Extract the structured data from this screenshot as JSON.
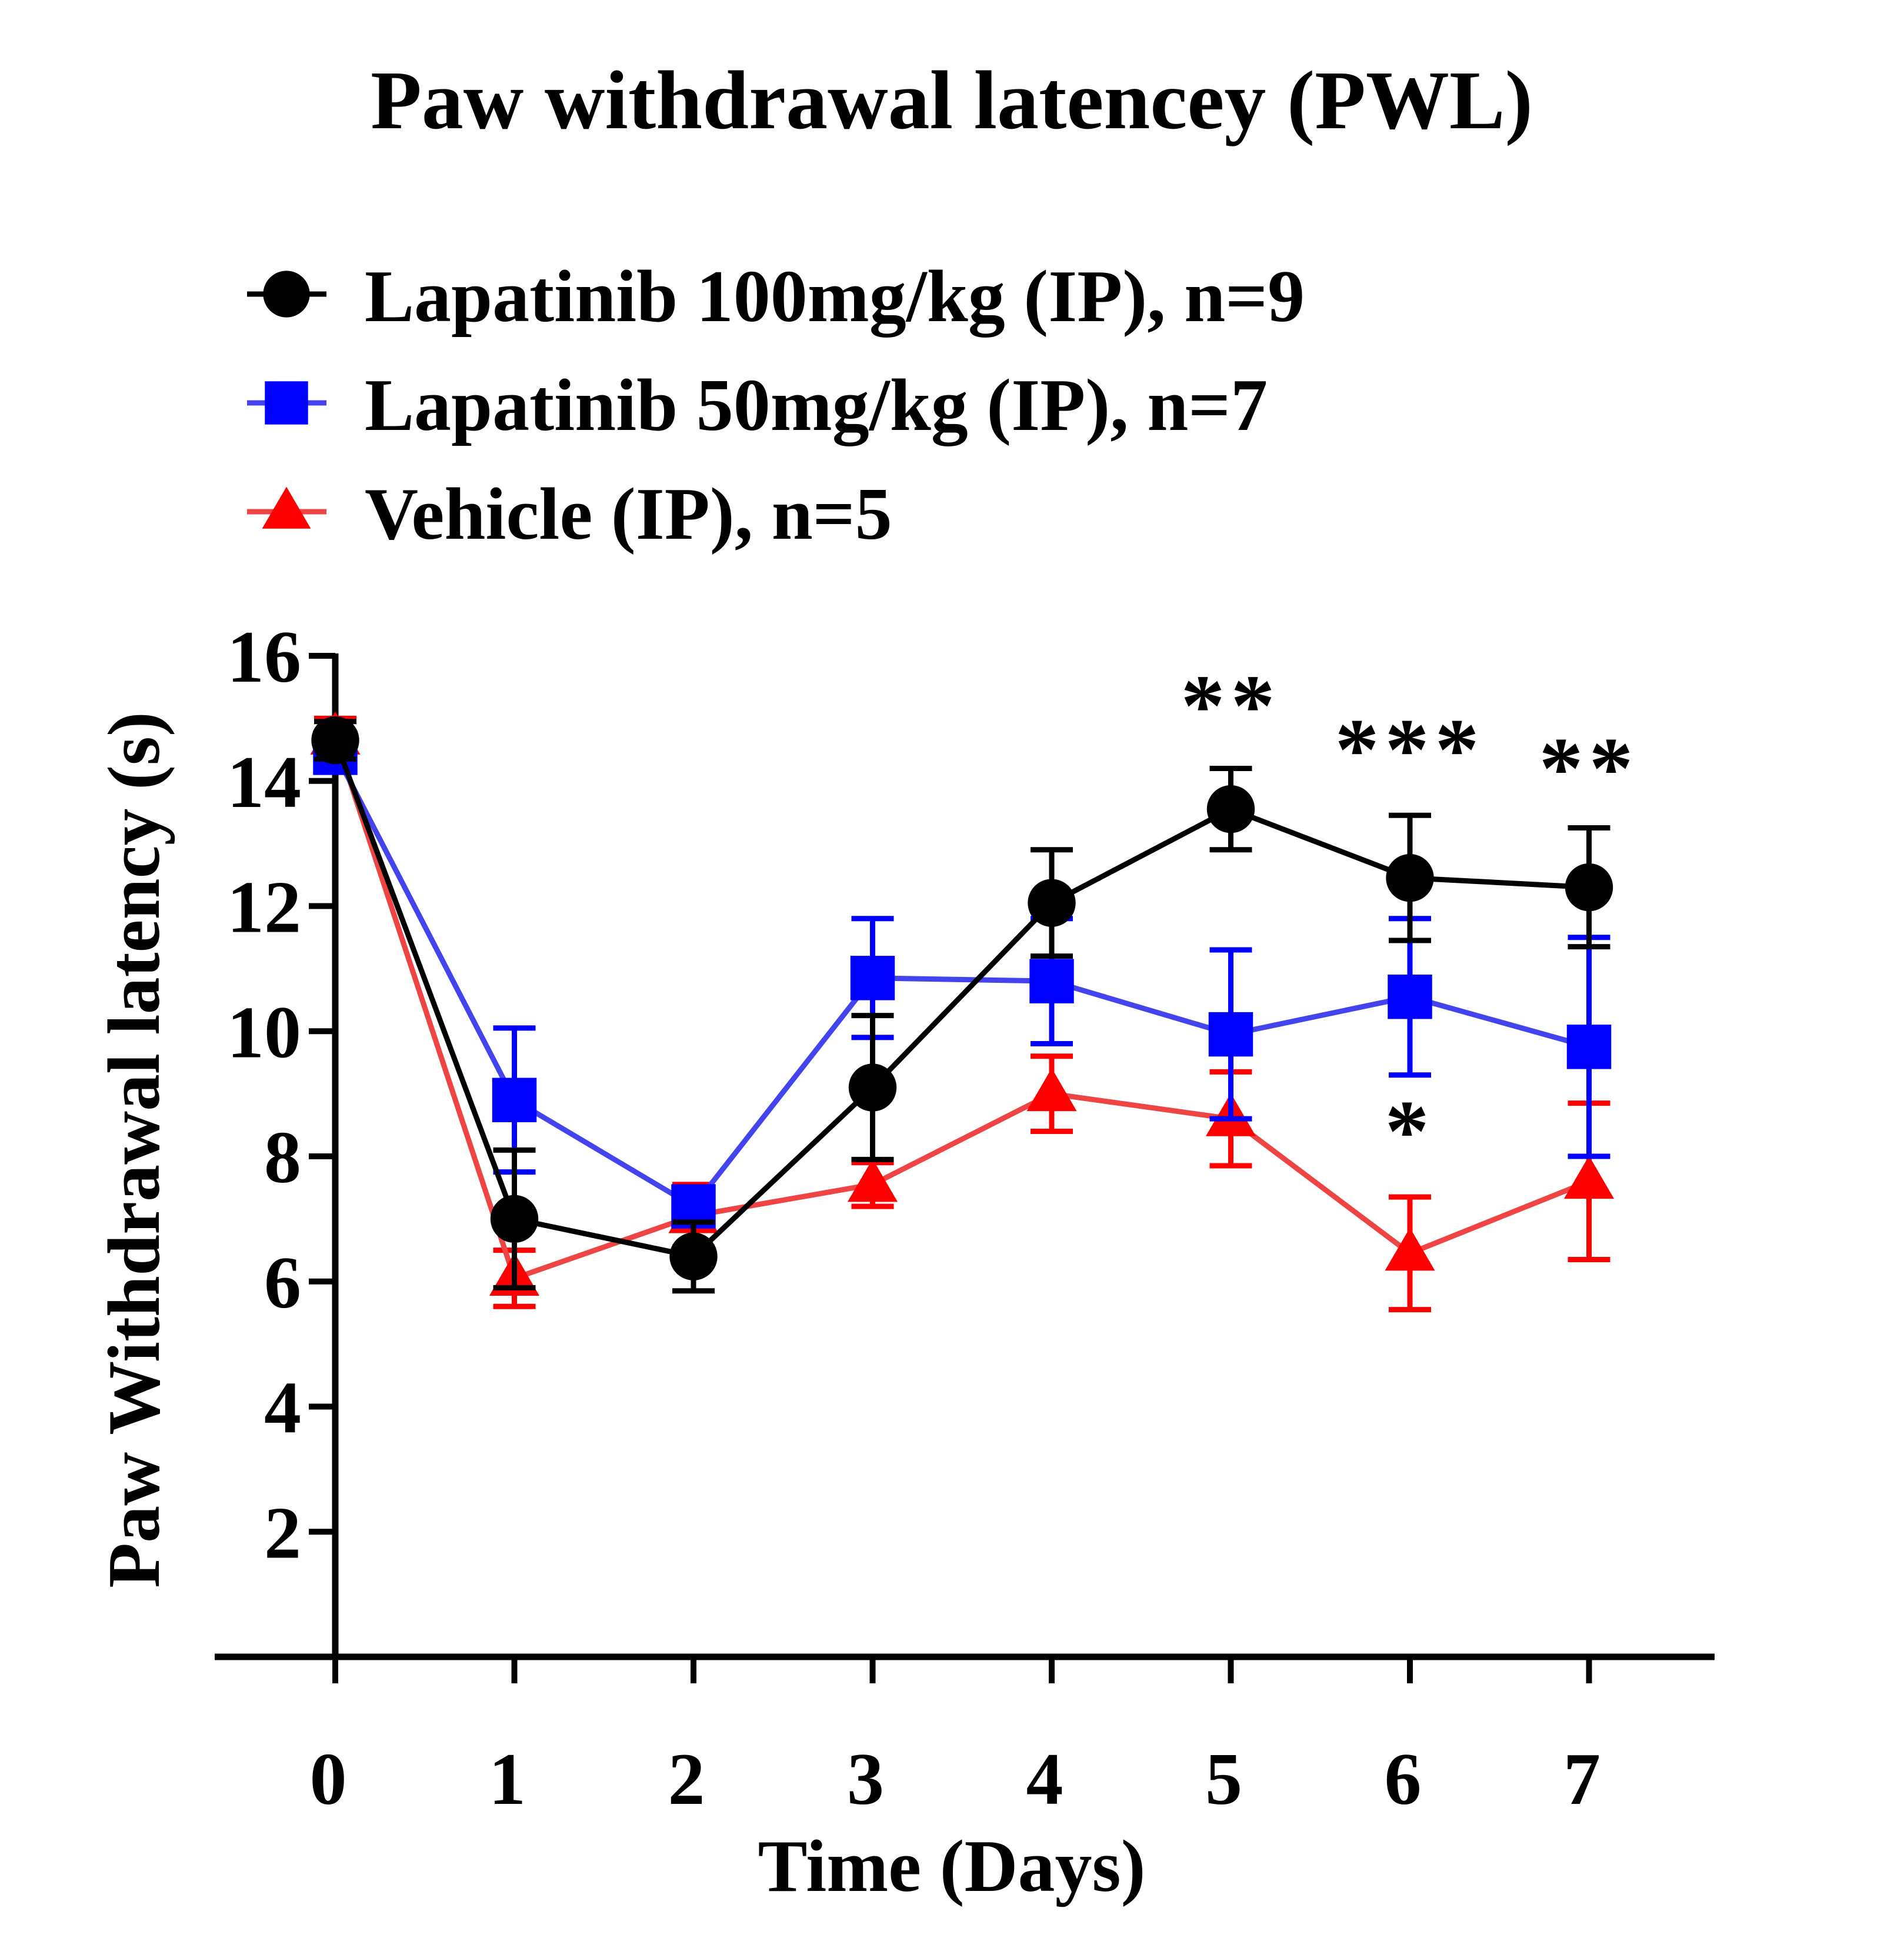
{
  "chart_data": {
    "type": "line",
    "title": "Paw withdrawal latencey (PWL)",
    "xlabel": "Time (Days)",
    "ylabel": "Paw Withdrawal latency (s)",
    "x": [
      0,
      1,
      2,
      3,
      4,
      5,
      6,
      7
    ],
    "x_tick_labels": [
      "0",
      "1",
      "2",
      "3",
      "4",
      "5",
      "6",
      "7"
    ],
    "y_ticks": [
      2,
      4,
      6,
      8,
      10,
      12,
      14,
      16
    ],
    "y_tick_labels": [
      "2",
      "4",
      "6",
      "8",
      "10",
      "12",
      "14",
      "16"
    ],
    "ylim": [
      0,
      16
    ],
    "xlim": [
      -0.65,
      7.65
    ],
    "grid": false,
    "legend_position": "top-left",
    "series": [
      {
        "name": "Lapatinib 100mg/kg (IP), n=9",
        "color": "#000000",
        "line_color": "#000000",
        "marker": "circle",
        "values": [
          14.65,
          7.0,
          6.4,
          9.1,
          12.05,
          13.55,
          12.45,
          12.3
        ],
        "error": [
          0.3,
          1.1,
          0.55,
          1.15,
          0.85,
          0.65,
          1.0,
          0.95
        ]
      },
      {
        "name": "Lapatinib 50mg/kg (IP), n=7",
        "color": "#0000ff",
        "line_color": "#4444ee",
        "marker": "square",
        "values": [
          14.45,
          8.9,
          7.2,
          10.85,
          10.8,
          9.95,
          10.55,
          9.75
        ],
        "error": [
          0.3,
          1.15,
          0.3,
          0.95,
          1.0,
          1.35,
          1.25,
          1.75
        ]
      },
      {
        "name": "Vehicle (IP), n=5",
        "color": "#ff0000",
        "line_color": "#ee4444",
        "marker": "triangle",
        "values": [
          14.7,
          6.05,
          7.05,
          7.55,
          9.0,
          8.6,
          6.45,
          7.6
        ],
        "error": [
          0.3,
          0.45,
          0.5,
          0.35,
          0.6,
          0.75,
          0.9,
          1.25
        ]
      }
    ],
    "annotations": [
      {
        "text": "**",
        "x": 5,
        "y": 15.2
      },
      {
        "text": "***",
        "x": 6,
        "y": 14.5
      },
      {
        "text": "**",
        "x": 7,
        "y": 14.2
      },
      {
        "text": "*",
        "x": 6,
        "y": 8.4
      }
    ]
  }
}
